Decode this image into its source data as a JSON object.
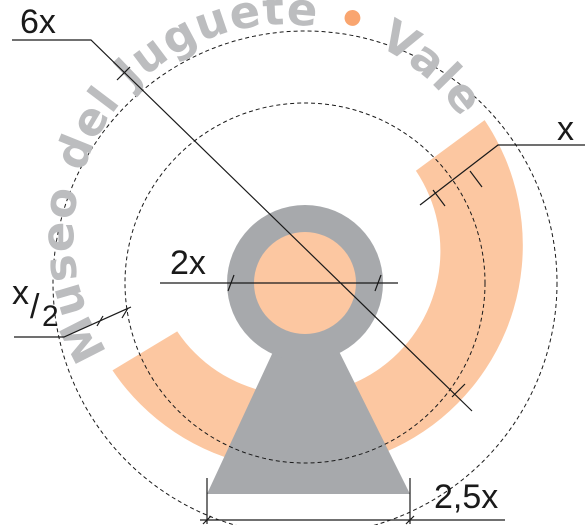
{
  "ring_text": {
    "part_a": "Museo del Juguete",
    "dot": "•",
    "part_b": "Valencia"
  },
  "dimensions": {
    "six_x": "6x",
    "x": "x",
    "two_x": "2x",
    "half_num": "x",
    "half_slash": "/",
    "half_den": "2",
    "two_half_x": "2,5x"
  },
  "colors": {
    "peach": "#fcc7a1",
    "grey": "#a7a9ac",
    "ink": "#1a1a1a",
    "dot": "#f9a56f"
  }
}
